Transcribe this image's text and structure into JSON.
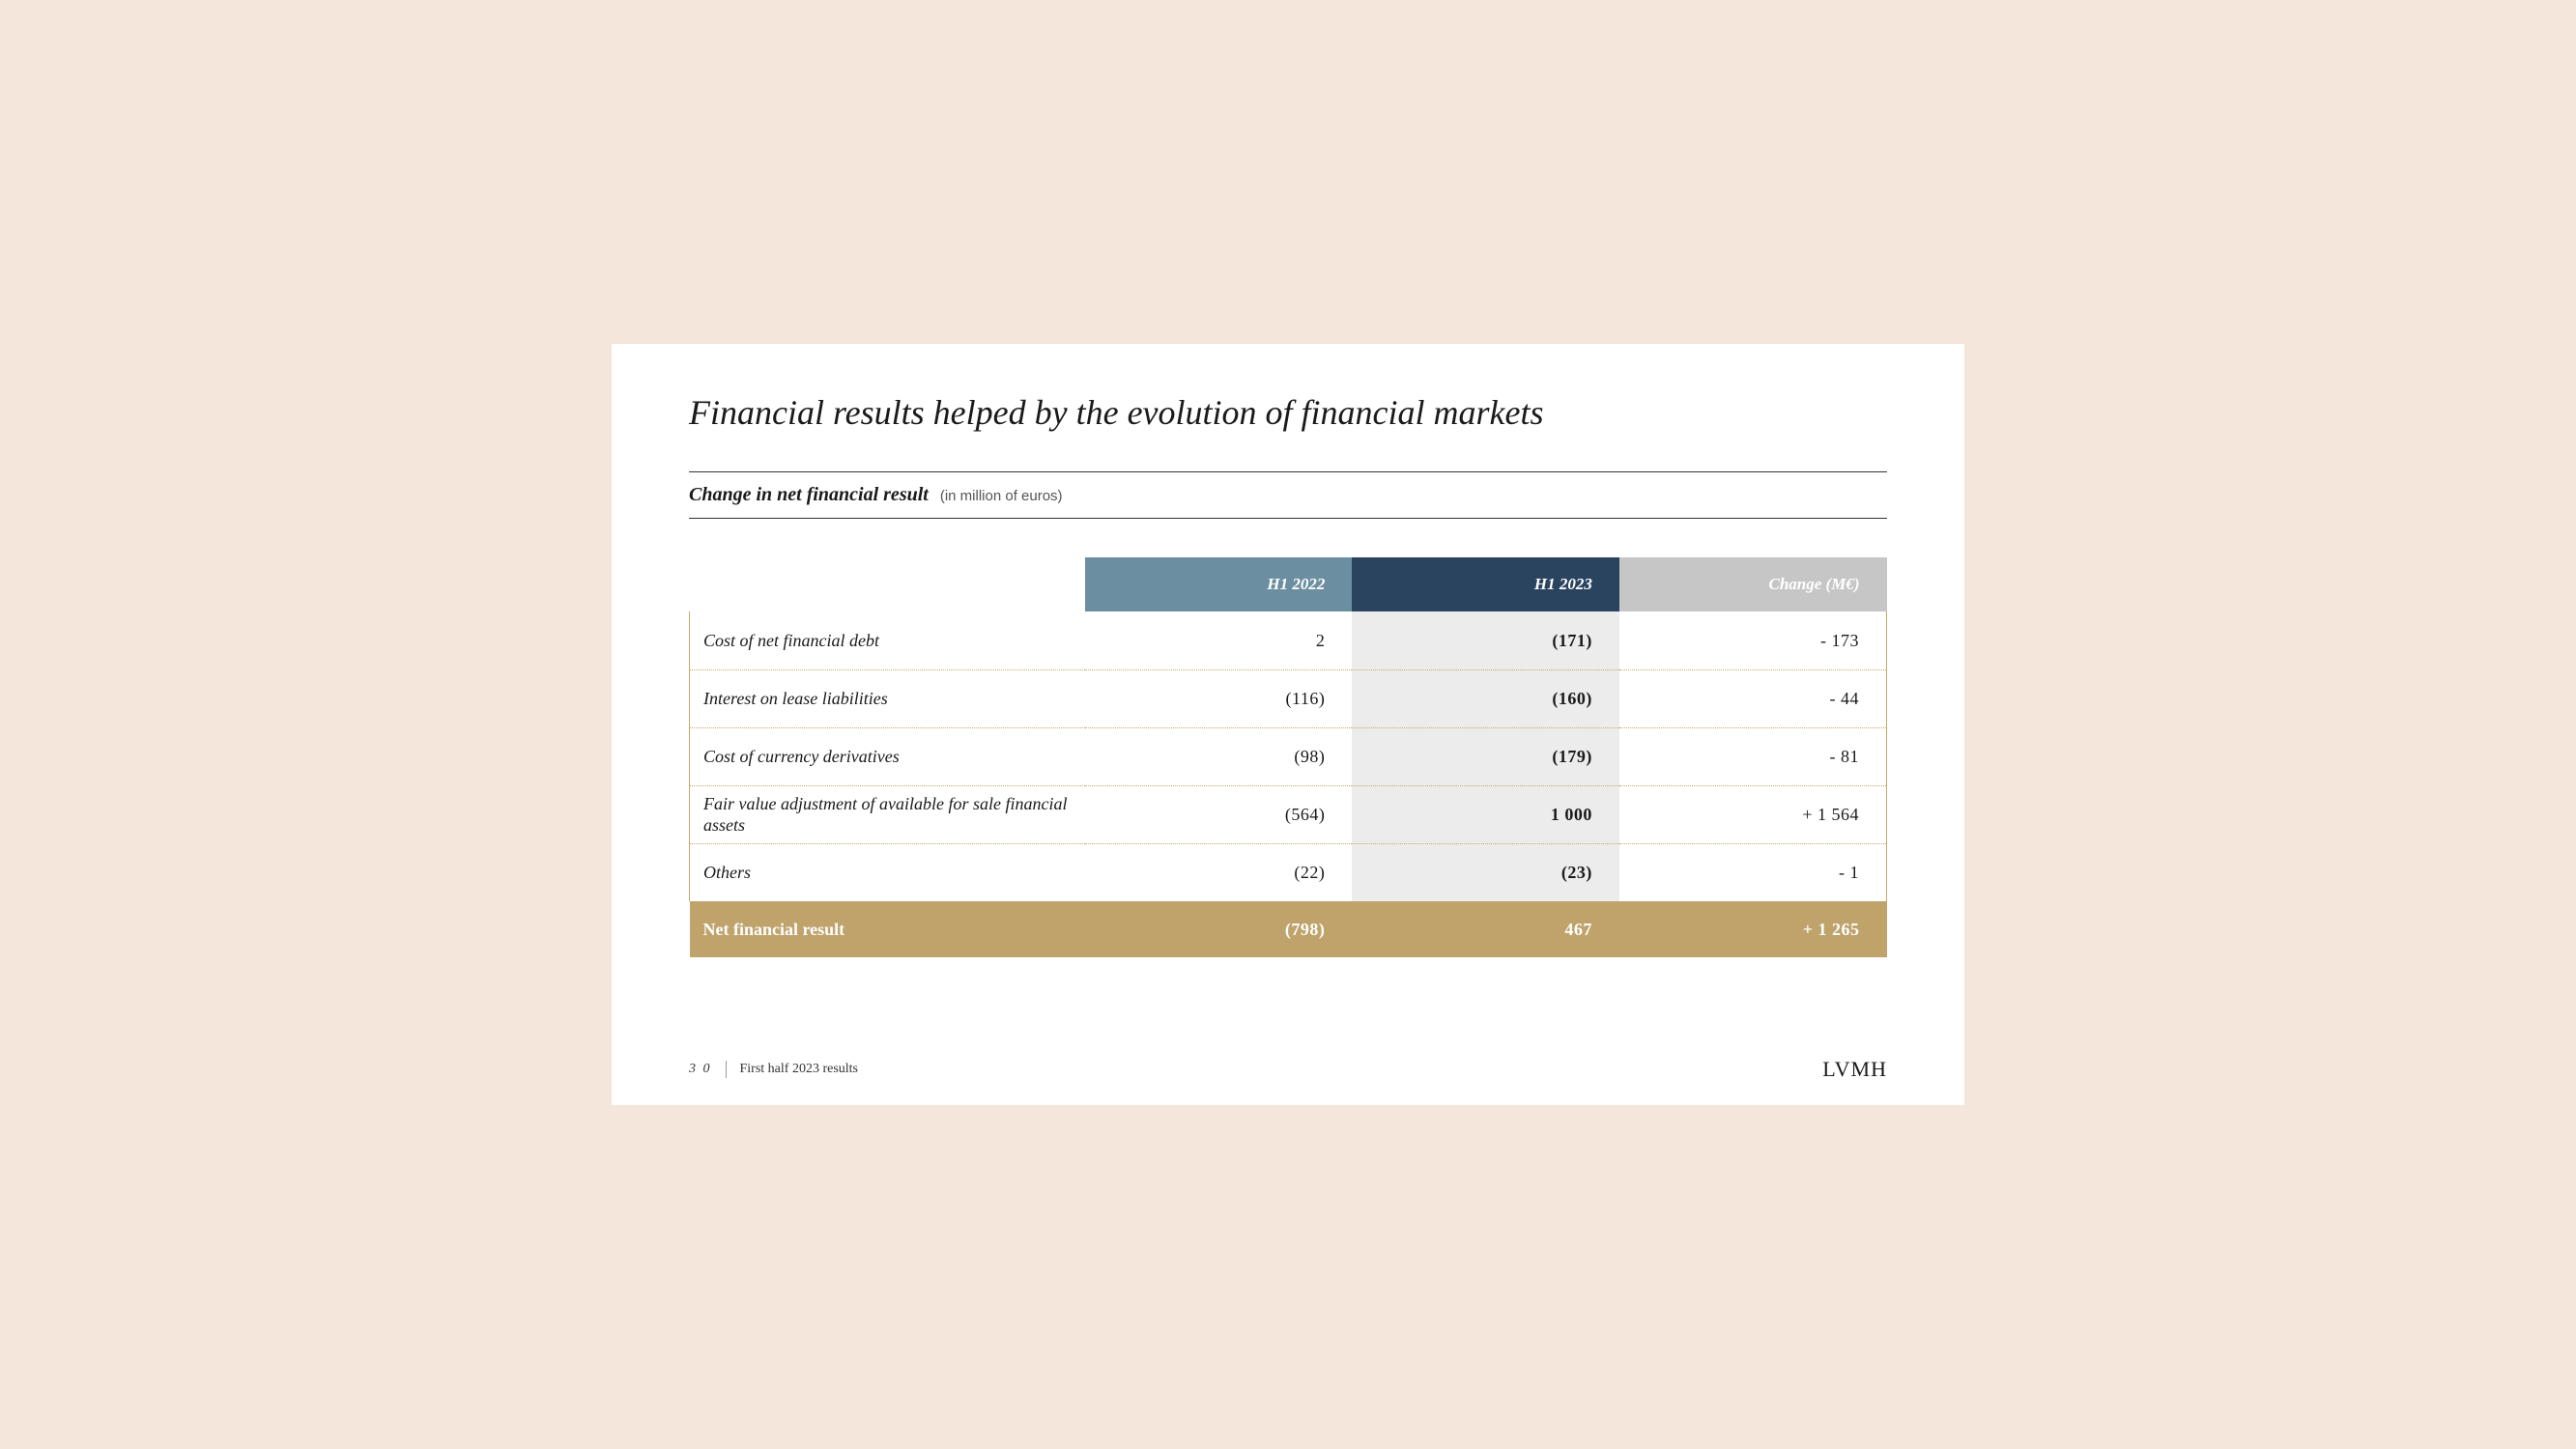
{
  "title": "Financial results helped by the evolution of financial markets",
  "subtitle": "Change in net financial result",
  "subtitle_note": "(in million of euros)",
  "colors": {
    "page_bg": "#f4e6da",
    "slide_bg": "#ffffff",
    "header_h1_2022": "#6b8fa0",
    "header_h1_2023": "#2a4460",
    "header_change": "#c6c6c6",
    "row_highlight": "#ececec",
    "total_row": "#bfa36b",
    "border": "#c9a96a"
  },
  "table": {
    "type": "table",
    "columns": [
      "",
      "H1 2022",
      "H1 2023",
      "Change (M€)"
    ],
    "rows": [
      {
        "label": "Cost of net financial debt",
        "h1_2022": "2",
        "h1_2023": "(171)",
        "change": "- 173"
      },
      {
        "label": "Interest on lease liabilities",
        "h1_2022": "(116)",
        "h1_2023": "(160)",
        "change": "- 44"
      },
      {
        "label": "Cost of currency derivatives",
        "h1_2022": "(98)",
        "h1_2023": "(179)",
        "change": "- 81"
      },
      {
        "label": "Fair value adjustment of available for sale financial assets",
        "h1_2022": "(564)",
        "h1_2023": "1 000",
        "change": "+ 1 564"
      },
      {
        "label": "Others",
        "h1_2022": "(22)",
        "h1_2023": "(23)",
        "change": "- 1"
      }
    ],
    "total": {
      "label": "Net financial result",
      "h1_2022": "(798)",
      "h1_2023": "467",
      "change": "+ 1 265"
    }
  },
  "footer": {
    "page": "3 0",
    "text": "First half 2023 results",
    "brand": "LVMH"
  }
}
